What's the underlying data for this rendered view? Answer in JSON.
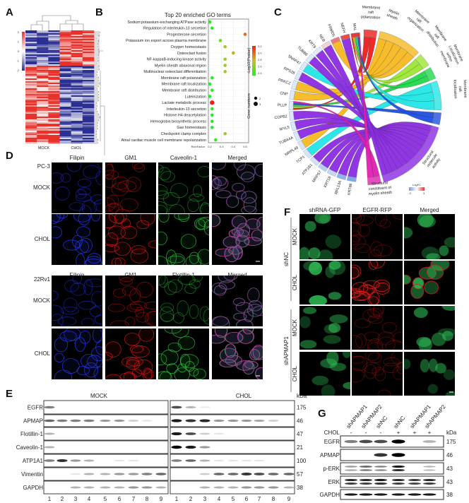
{
  "panel_letters": [
    "A",
    "B",
    "C",
    "D",
    "E",
    "F",
    "G"
  ],
  "panelA": {
    "col_labels": [
      "MOCK",
      "CHOL"
    ],
    "colorbar_ticks": [
      "2",
      "1",
      "0",
      "-1",
      "-2"
    ],
    "colors": {
      "high": "#e8312a",
      "mid": "#ffffff",
      "low": "#2b2f91"
    }
  },
  "panelB": {
    "chart_data": {
      "type": "scatter",
      "title": "Top 20 enriched GO terms",
      "xlabel": "RichFactor",
      "xticks": [
        "0.2",
        "0.3",
        "0.4",
        "0.5"
      ],
      "xlim": [
        0.19,
        0.52
      ],
      "categories": [
        "Sodium:potassium-exchanging ATPase activity",
        "Regulation of interleukin-13 secretion",
        "Progesterone secretion",
        "Potassium ion export across plasma membrane",
        "Oxygen homeostasis",
        "Osteoclast fusion",
        "NF-kappaB-inducing kinase activity",
        "Myelin sheath abaxonal region",
        "Multinuclear osteoclast differentiation",
        "Membrane raft polarization",
        "Membrane raft localization",
        "Membrane raft distribution",
        "Luteinization",
        "Lactate metabolic process",
        "Interleukin-13 secretion",
        "Histone H4 deacetylation",
        "Hemoglobin biosynthetic process",
        "Gas homeostasis",
        "Checkpoint clamp complex",
        "Atrial cardiac muscle cell membrane repolarization"
      ],
      "rich_factor": [
        0.2,
        0.22,
        0.5,
        0.29,
        0.33,
        0.4,
        0.33,
        0.33,
        0.33,
        0.22,
        0.2,
        0.22,
        0.2,
        0.22,
        0.22,
        0.22,
        0.22,
        0.22,
        0.33,
        0.25
      ],
      "neg_log10_p": [
        2.4,
        2.4,
        3.0,
        2.6,
        2.7,
        2.85,
        2.7,
        2.7,
        2.7,
        2.4,
        2.4,
        2.4,
        2.4,
        3.2,
        2.4,
        2.4,
        2.4,
        2.4,
        2.7,
        2.45
      ],
      "gene_numbers": [
        2,
        2,
        2,
        2,
        2,
        2,
        2,
        2,
        2,
        2,
        2,
        2,
        2,
        3,
        2,
        2,
        2,
        2,
        2,
        2
      ],
      "color_legend": {
        "title": "-Log10(Pvalue)",
        "ticks": [
          "3.2",
          "3.0",
          "2.8",
          "2.6",
          "2.4"
        ],
        "low_color": "#22ee22",
        "mid_color": "#c8c020",
        "high_color": "#ff1a1a"
      },
      "size_legend": {
        "title": "Gene numbers",
        "values": [
          "2",
          "3"
        ]
      },
      "grid": true
    }
  },
  "panelC": {
    "genes": [
      {
        "name": "KRT86",
        "color": "#7fa6e8"
      },
      {
        "name": "RPL13A",
        "color": "#8fb1ec"
      },
      {
        "name": "KRT18",
        "color": "#c5d7f4"
      },
      {
        "name": "MRPS7",
        "color": "#b7cdf1"
      },
      {
        "name": "ATP1B1",
        "color": "#d3e1f6"
      },
      {
        "name": "TCP1",
        "color": "#d8e4f7"
      },
      {
        "name": "MRPL49",
        "color": "#d8e4f7"
      },
      {
        "name": "TUBA4A",
        "color": "#dbe6f7"
      },
      {
        "name": "MYL5",
        "color": "#dbe6f7"
      },
      {
        "name": "COPB2",
        "color": "#dbe6f7"
      },
      {
        "name": "PLLP",
        "color": "#dde8f8"
      },
      {
        "name": "CNP",
        "color": "#dde8f8"
      },
      {
        "name": "PRKCZ",
        "color": "#dde8f8"
      },
      {
        "name": "RPS28",
        "color": "#dde8f8"
      },
      {
        "name": "SNAP47",
        "color": "#dde8f8"
      },
      {
        "name": "TUBB6",
        "color": "#dde8f8"
      },
      {
        "name": "KRT8",
        "color": "#e2ebf8"
      },
      {
        "name": "NEB",
        "color": "#f3d3d0"
      },
      {
        "name": "FRMD5",
        "color": "#ee7b72"
      },
      {
        "name": "NEFH",
        "color": "#e84c44"
      },
      {
        "name": "MAL",
        "color": "#e53b36"
      }
    ],
    "terms": [
      {
        "lines": [
          "Membrane",
          "raft",
          "polarization"
        ],
        "color": "#ee1c1c"
      },
      {
        "lines": [
          "Myelin",
          "sheath"
        ],
        "color": "#f6b820"
      },
      {
        "lines": [
          "Membrane",
          "raft",
          "organization"
        ],
        "color": "#9de633"
      },
      {
        "lines": [
          "Membrane",
          "raft",
          "distribution"
        ],
        "color": "#22d84a"
      },
      {
        "lines": [
          "Membrane",
          "Localization",
          "within",
          "membrane"
        ],
        "color": "#22e6e6"
      },
      {
        "lines": [
          "Membrane",
          "raft",
          "localization"
        ],
        "color": "#1f4fe0"
      },
      {
        "lines": [
          "Structural",
          "molecule",
          "activity"
        ],
        "color": "#8a2be2"
      },
      {
        "lines": [
          "Structural",
          "constituent of",
          "myelin sheath"
        ],
        "color": "#e020b0"
      }
    ],
    "logfc_legend": {
      "title": "LogFC",
      "min": "-3",
      "max": "3",
      "low_color": "#6f9ae8",
      "high_color": "#e8313a"
    }
  },
  "panelD": {
    "block1": {
      "cell_line": "PC-3",
      "channels": [
        "Filipin",
        "GM1",
        "Caveolin-1",
        "Merged"
      ],
      "rows": [
        "MOCK",
        "CHOL"
      ]
    },
    "block2": {
      "cell_line": "22Rv1",
      "channels": [
        "Filipin",
        "GM1",
        "Flotillin-1",
        "Merged"
      ],
      "rows": [
        "MOCK",
        "CHOL"
      ]
    }
  },
  "panelE": {
    "groups": [
      "MOCK",
      "CHOL"
    ],
    "kda_label": "kDa",
    "lanes": [
      "1",
      "2",
      "3",
      "4",
      "5",
      "6",
      "7",
      "8",
      "9"
    ],
    "rows": [
      {
        "protein": "EGFR",
        "kda": "175",
        "mock": [
          0.5,
          0,
          0,
          0,
          0,
          0,
          0,
          0,
          0
        ],
        "chol": [
          0.7,
          0.3,
          0.08,
          0,
          0,
          0,
          0,
          0,
          0
        ]
      },
      {
        "protein": "APMAP",
        "kda": "46",
        "mock": [
          0.6,
          0.5,
          0.5,
          0.5,
          0.4,
          0.4,
          0.2,
          0.1,
          0
        ],
        "chol": [
          0.9,
          0.8,
          0.85,
          0.4,
          0.4,
          0.4,
          0.35,
          0.2,
          0
        ]
      },
      {
        "protein": "Flotillin-1",
        "kda": "47",
        "mock": [
          0.3,
          0,
          0,
          0,
          0,
          0,
          0,
          0,
          0
        ],
        "chol": [
          0.9,
          0.7,
          0.2,
          0.1,
          0,
          0,
          0,
          0,
          0
        ]
      },
      {
        "protein": "Caveolin-1",
        "kda": "21",
        "mock": [
          0.3,
          0,
          0,
          0,
          0,
          0,
          0,
          0,
          0
        ],
        "chol": [
          1,
          0.9,
          0.4,
          0,
          0,
          0,
          0,
          0,
          0
        ]
      },
      {
        "protein": "ATP1A1",
        "kda": "100",
        "mock": [
          0.5,
          0.8,
          0.4,
          0.3,
          0,
          0.1,
          0.1,
          0,
          0
        ],
        "chol": [
          0.5,
          0.6,
          0.3,
          0.1,
          0.1,
          0.1,
          0.1,
          0,
          0
        ]
      },
      {
        "protein": "Vimentin",
        "kda": "57",
        "mock": [
          0,
          0,
          0.1,
          0.3,
          0.3,
          0.4,
          0.4,
          0.5,
          0.6
        ],
        "chol": [
          0,
          0,
          0.2,
          0.6,
          0.6,
          0.8,
          0.7,
          0.6,
          0.6
        ]
      },
      {
        "protein": "GAPDH",
        "kda": "38",
        "mock": [
          0,
          0,
          0.3,
          0.3,
          0.3,
          0.3,
          0.4,
          0.4,
          0.3
        ],
        "chol": [
          0,
          0,
          0.3,
          0.3,
          0.3,
          0.4,
          0.4,
          0.4,
          0.3
        ]
      }
    ]
  },
  "panelF": {
    "channels": [
      "shRNA-GFP",
      "EGFR-RFP",
      "Merged"
    ],
    "groups": [
      {
        "name": "shNC",
        "rows": [
          "MOCK",
          "CHOL"
        ]
      },
      {
        "name": "shAPMAP1",
        "rows": [
          "MOCK",
          "CHOL"
        ]
      }
    ]
  },
  "panelG": {
    "lanes": [
      "shAPMAP1",
      "shAPMAP2",
      "shNC",
      "shNC",
      "shAPMAP1",
      "shAPMAP2"
    ],
    "chol_label": "CHOL",
    "chol": [
      "-",
      "-",
      "-",
      "+",
      "+",
      "+"
    ],
    "kda_label": "kDa",
    "rows": [
      {
        "protein": "EGFR",
        "kda": "175",
        "bands": [
          0.5,
          0.7,
          0.7,
          1,
          0,
          0.3
        ]
      },
      {
        "protein": "APMAP",
        "kda": "46",
        "bands": [
          0,
          0,
          0.8,
          1,
          0,
          0
        ]
      },
      {
        "protein": "p-ERK",
        "kda": "43",
        "bands": [
          0.4,
          0.6,
          0.5,
          0.9,
          0,
          0.3
        ]
      },
      {
        "protein": "ERK",
        "kda": "43",
        "bands": [
          0.85,
          0.85,
          0.9,
          0.85,
          0.8,
          0.85
        ]
      },
      {
        "protein": "GAPDH",
        "kda": "38",
        "bands": [
          0.9,
          0.9,
          0.9,
          0.9,
          0.9,
          0.9
        ]
      }
    ]
  }
}
